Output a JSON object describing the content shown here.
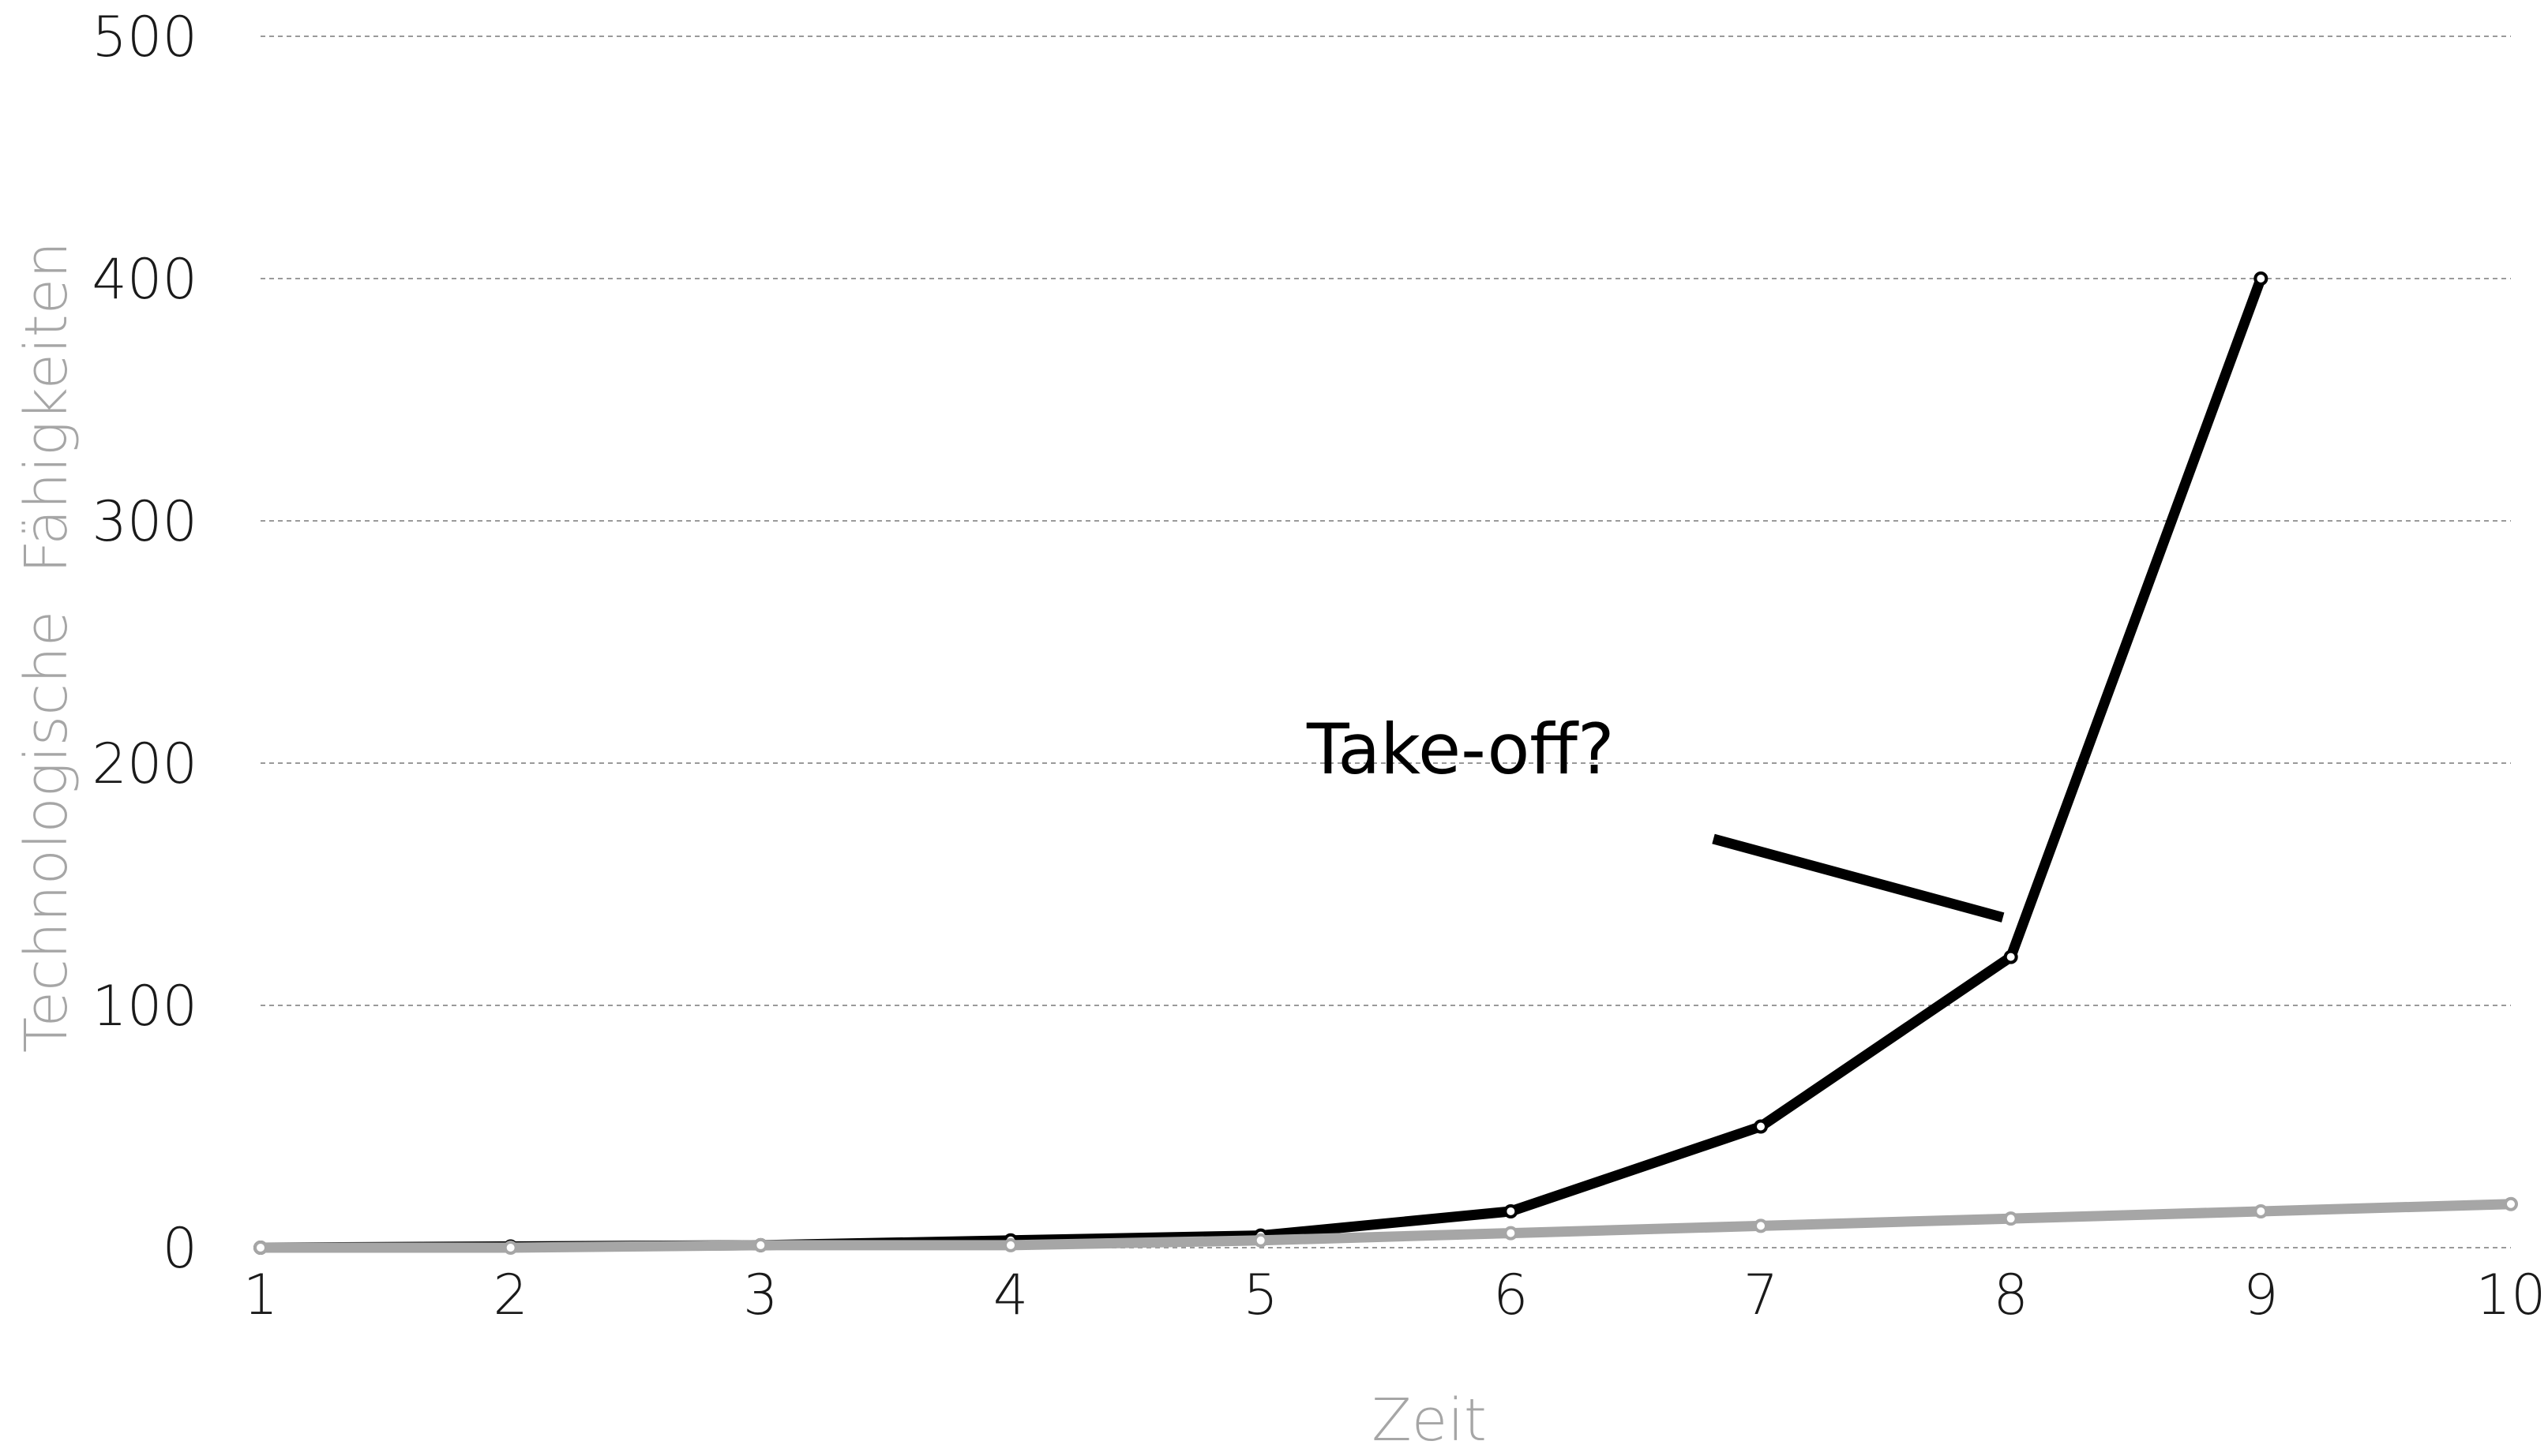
{
  "chart_data": {
    "type": "line",
    "x": [
      1,
      2,
      3,
      4,
      5,
      6,
      7,
      8,
      9,
      10
    ],
    "xlabel": "Zeit",
    "ylabel": "Technologische  Fähigkeiten",
    "ylim": [
      0,
      500
    ],
    "yticks": [
      0,
      100,
      200,
      300,
      400,
      500
    ],
    "xticks": [
      1,
      2,
      3,
      4,
      5,
      6,
      7,
      8,
      9,
      10
    ],
    "grid": "horizontal dotted",
    "series": [
      {
        "values": [
          0,
          0.5,
          1,
          3,
          5,
          15,
          50,
          120,
          400,
          null
        ],
        "color": "#000000"
      },
      {
        "values": [
          0,
          0,
          1,
          1,
          3,
          6,
          9,
          12,
          15,
          18
        ],
        "color": "#a6a6a6"
      }
    ],
    "annotations": [
      {
        "text": "Take-off?",
        "points_to": {
          "x": 8,
          "y": 120
        }
      }
    ]
  }
}
